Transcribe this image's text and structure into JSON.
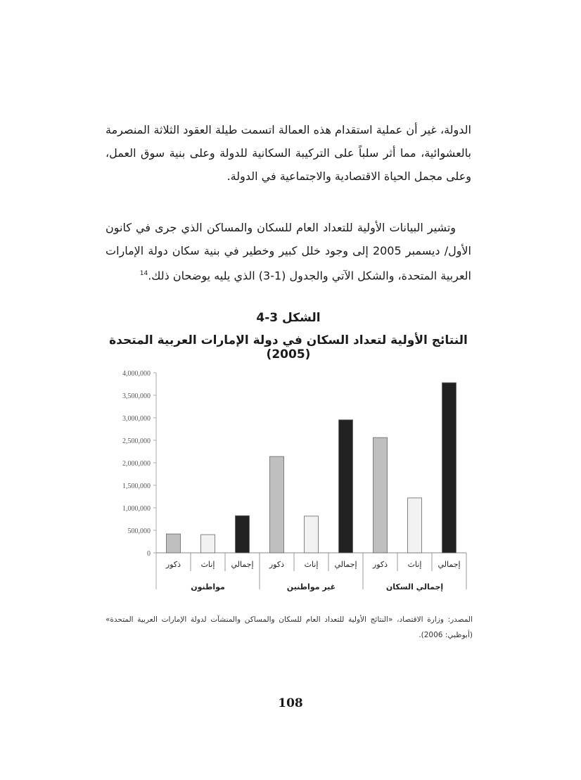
{
  "paragraph1": "الدولة، غير أن عملية استقدام هذه العمالة اتسمت طيلة العقود الثلاثة المنصرمة بالعشوائية، مما أثر سلباً على التركيبة السكانية للدولة وعلى بنية سوق العمل، وعلى مجمل الحياة الاقتصادية والاجتماعية في الدولة.",
  "paragraph2": "وتشير البيانات الأولية للتعداد العام للسكان والمساكن الذي جرى في كانون الأول/ ديسمبر 2005 إلى وجود خلل كبير وخطير في بنية سكان دولة الإمارات العربية المتحدة، والشكل الآتي والجدول (1-3) الذي يليه يوضحان ذلك.",
  "footnote_ref": "14",
  "figure_label": "الشكل 3-4",
  "figure_title": "النتائج الأولية لتعداد السكان في دولة الإمارات العربية المتحدة (2005)",
  "chart_data": {
    "type": "bar",
    "groups": [
      "مواطنون",
      "غير مواطنين",
      "إجمالي السكان"
    ],
    "categories": [
      "ذكور",
      "إناث",
      "إجمالي"
    ],
    "series_colors": {
      "ذكور": "#bfbfbf",
      "إناث": "#f2f2f2",
      "إجمالي": "#222222"
    },
    "values": [
      [
        420000,
        405000,
        825000
      ],
      [
        2140000,
        815000,
        2955000
      ],
      [
        2560000,
        1220000,
        3780000
      ]
    ],
    "yticks": [
      "0",
      "500,000",
      "1,000,000",
      "1,500,000",
      "2,000,000",
      "2,500,000",
      "3,000,000",
      "3,500,000",
      "4,000,000"
    ],
    "ylim": [
      0,
      4000000
    ],
    "grid": false,
    "legend": "none"
  },
  "source": "المصدر: وزارة الاقتصاد، «النتائج الأولية للتعداد العام للسكان والمساكن والمنشآت لدولة الإمارات العربية المتحدة» (أبوظبي: 2006).",
  "page_number": "108"
}
